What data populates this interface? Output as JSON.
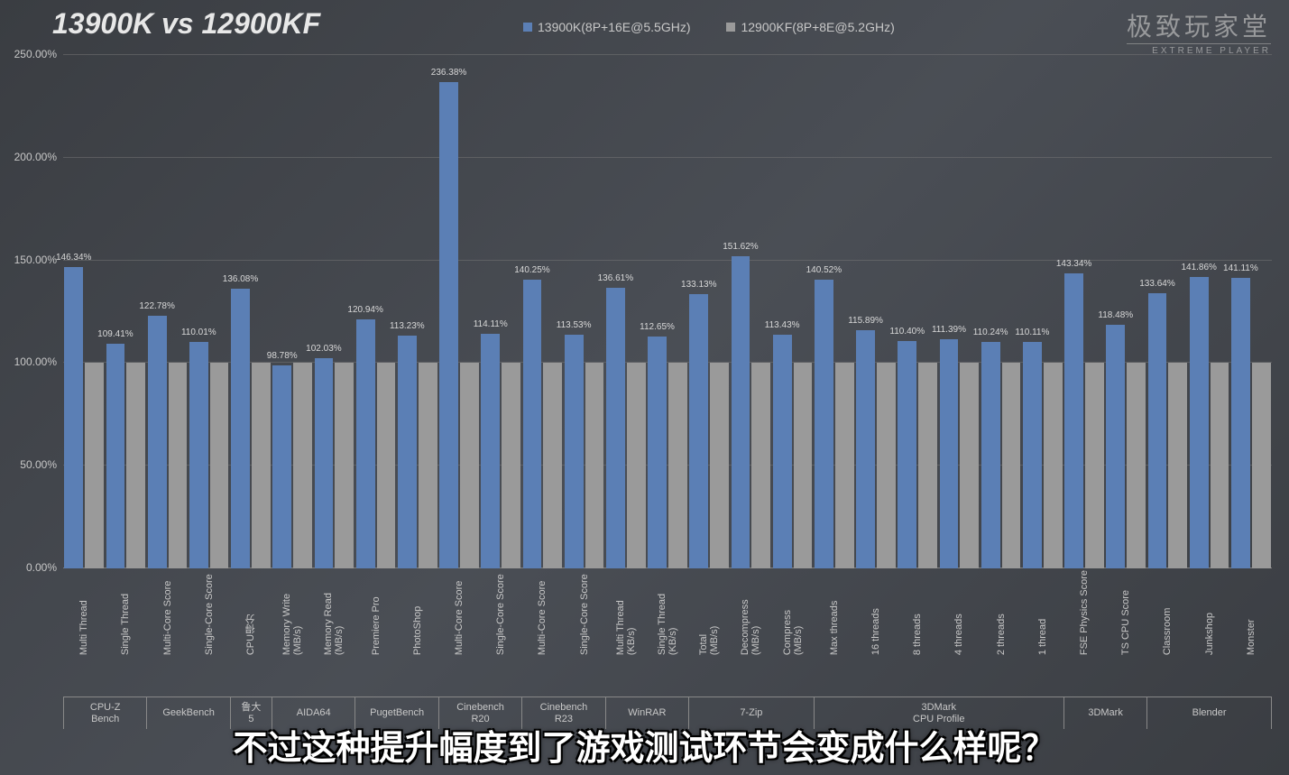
{
  "title": "13900K vs 12900KF",
  "legend": {
    "series1": {
      "label": "13900K(8P+16E@5.5GHz)",
      "color": "#5b7fb5"
    },
    "series2": {
      "label": "12900KF(8P+8E@5.2GHz)",
      "color": "#9a9a9a"
    }
  },
  "watermark": {
    "cn": "极致玩家堂",
    "en": "EXTREME PLAYER"
  },
  "subtitle": "不过这种提升幅度到了游戏测试环节会变成什么样呢？",
  "chart": {
    "type": "bar",
    "ylim": [
      0,
      250
    ],
    "ytick_step": 50,
    "ytick_format": "0.00%",
    "baseline_value": 100,
    "series1_color": "#5b7fb5",
    "series2_color": "#9a9a9a",
    "grid_color": "rgba(120,120,120,0.5)",
    "label_color": "#d8d8d8",
    "label_fontsize": 10,
    "yticks": [
      "0.00%",
      "50.00%",
      "100.00%",
      "150.00%",
      "200.00%",
      "250.00%"
    ],
    "bars": [
      {
        "xlabel": "Multi Thread",
        "value": 146.34,
        "label": "146.34%"
      },
      {
        "xlabel": "Single Thread",
        "value": 109.41,
        "label": "109.41%"
      },
      {
        "xlabel": "Multi-Core Score",
        "value": 122.78,
        "label": "122.78%"
      },
      {
        "xlabel": "Single-Core Score",
        "value": 110.01,
        "label": "110.01%"
      },
      {
        "xlabel": "CPU得分",
        "value": 136.08,
        "label": "136.08%"
      },
      {
        "xlabel": "Memory Write\n(MB/s)",
        "value": 98.78,
        "label": "98.78%"
      },
      {
        "xlabel": "Memory Read\n(MB/s)",
        "value": 102.03,
        "label": "102.03%"
      },
      {
        "xlabel": "Premiere Pro",
        "value": 120.94,
        "label": "120.94%"
      },
      {
        "xlabel": "PhotoShop",
        "value": 113.23,
        "label": "113.23%"
      },
      {
        "xlabel": "Multi-Core Score",
        "value": 236.38,
        "label": "236.38%"
      },
      {
        "xlabel": "Single-Core Score",
        "value": 114.11,
        "label": "114.11%"
      },
      {
        "xlabel": "Multi-Core Score",
        "value": 140.25,
        "label": "140.25%"
      },
      {
        "xlabel": "Single-Core Score",
        "value": 113.53,
        "label": "113.53%"
      },
      {
        "xlabel": "Multi Thread\n(KB/s)",
        "value": 136.61,
        "label": "136.61%"
      },
      {
        "xlabel": "Single Thread\n(KB/s)",
        "value": 112.65,
        "label": "112.65%"
      },
      {
        "xlabel": "Total\n(MB/s)",
        "value": 133.13,
        "label": "133.13%"
      },
      {
        "xlabel": "Decompress\n(MB/s)",
        "value": 151.62,
        "label": "151.62%"
      },
      {
        "xlabel": "Compress\n(MB/s)",
        "value": 113.43,
        "label": "113.43%"
      },
      {
        "xlabel": "Max threads",
        "value": 140.52,
        "label": "140.52%"
      },
      {
        "xlabel": "16 threads",
        "value": 115.89,
        "label": "115.89%"
      },
      {
        "xlabel": "8 threads",
        "value": 110.4,
        "label": "110.40%"
      },
      {
        "xlabel": "4 threads",
        "value": 111.39,
        "label": "111.39%"
      },
      {
        "xlabel": "2 threads",
        "value": 110.24,
        "label": "110.24%"
      },
      {
        "xlabel": "1 thread",
        "value": 110.11,
        "label": "110.11%"
      },
      {
        "xlabel": "FSE Physics Score",
        "value": 143.34,
        "label": "143.34%"
      },
      {
        "xlabel": "TS CPU Score",
        "value": 118.48,
        "label": "118.48%"
      },
      {
        "xlabel": "Classroom",
        "value": 133.64,
        "label": "133.64%"
      },
      {
        "xlabel": "Junkshop",
        "value": 141.86,
        "label": "141.86%"
      },
      {
        "xlabel": "Monster",
        "value": 141.11,
        "label": "141.11%"
      }
    ],
    "groups": [
      {
        "label": "CPU-Z\nBench",
        "span": 2
      },
      {
        "label": "GeekBench",
        "span": 2
      },
      {
        "label": "鲁大\n5",
        "span": 1
      },
      {
        "label": "AIDA64",
        "span": 2
      },
      {
        "label": "PugetBench",
        "span": 2
      },
      {
        "label": "Cinebench\nR20",
        "span": 2
      },
      {
        "label": "Cinebench\nR23",
        "span": 2
      },
      {
        "label": "WinRAR",
        "span": 2
      },
      {
        "label": "7-Zip",
        "span": 3
      },
      {
        "label": "3DMark\nCPU Profile",
        "span": 6
      },
      {
        "label": "3DMark",
        "span": 2
      },
      {
        "label": "Blender",
        "span": 3
      }
    ]
  }
}
